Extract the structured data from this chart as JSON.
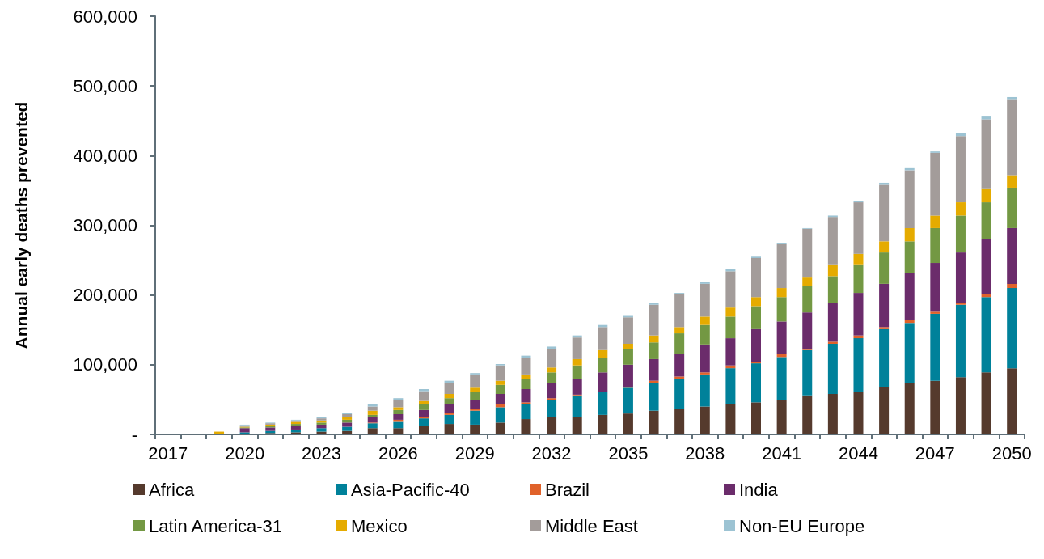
{
  "chart_data": {
    "type": "bar",
    "stacked": true,
    "ylabel": "Annual early deaths prevented",
    "categories": [
      "2017",
      null,
      null,
      "2020",
      null,
      null,
      "2023",
      null,
      null,
      "2026",
      null,
      null,
      "2029",
      null,
      null,
      "2032",
      null,
      null,
      "2035",
      null,
      null,
      "2038",
      null,
      null,
      "2041",
      null,
      null,
      "2044",
      null,
      null,
      "2047",
      null,
      null,
      "2050"
    ],
    "ylim": [
      0,
      600000
    ],
    "yticks": [
      {
        "value": 0,
        "label": "-"
      },
      {
        "value": 100000,
        "label": "100,000"
      },
      {
        "value": 200000,
        "label": "200,000"
      },
      {
        "value": 300000,
        "label": "300,000"
      },
      {
        "value": 400000,
        "label": "400,000"
      },
      {
        "value": 500000,
        "label": "500,000"
      },
      {
        "value": 600000,
        "label": "600,000"
      }
    ],
    "grid": false,
    "legend": "bottom",
    "series": [
      {
        "name": "Africa",
        "color": "#553a2d",
        "values": [
          0,
          0,
          1000,
          1000,
          2000,
          3000,
          4000,
          5000,
          9000,
          9000,
          12000,
          15000,
          14000,
          17000,
          22000,
          25000,
          25000,
          28000,
          30000,
          34000,
          36000,
          40000,
          43000,
          46000,
          49000,
          56000,
          58000,
          61000,
          68000,
          74000,
          77000,
          82000,
          89000,
          95000
        ]
      },
      {
        "name": "Asia-Pacific-40",
        "color": "#00819a",
        "values": [
          0,
          0,
          0,
          2000,
          3000,
          4000,
          5000,
          6000,
          7000,
          9000,
          11000,
          13000,
          20000,
          22000,
          22000,
          24000,
          31000,
          33000,
          37000,
          40000,
          44000,
          46000,
          52000,
          56000,
          62000,
          65000,
          72000,
          77000,
          83000,
          86000,
          96000,
          104000,
          108000,
          115000
        ]
      },
      {
        "name": "Brazil",
        "color": "#e0622a",
        "values": [
          0,
          0,
          0,
          0,
          0,
          0,
          null,
          null,
          1000,
          3000,
          2000,
          3000,
          2000,
          4000,
          2000,
          3000,
          1000,
          null,
          1000,
          3000,
          3000,
          3000,
          4000,
          2000,
          4000,
          2000,
          3000,
          4000,
          3000,
          4000,
          3000,
          2000,
          4000,
          6000
        ]
      },
      {
        "name": "India",
        "color": "#6b2c6b",
        "values": [
          1000,
          0,
          0,
          6000,
          5000,
          5000,
          5000,
          6000,
          8000,
          8000,
          10000,
          12000,
          13000,
          15000,
          19000,
          22000,
          23000,
          28000,
          32000,
          31000,
          33000,
          40000,
          39000,
          47000,
          47000,
          52000,
          55000,
          61000,
          62000,
          67000,
          70000,
          73000,
          79000,
          80000
        ]
      },
      {
        "name": "Latin America-31",
        "color": "#739843",
        "values": [
          0,
          0,
          0,
          1000,
          2000,
          3000,
          3000,
          4000,
          3000,
          6000,
          8000,
          9000,
          12000,
          13000,
          15000,
          15000,
          19000,
          21000,
          22000,
          24000,
          29000,
          28000,
          31000,
          33000,
          35000,
          38000,
          39000,
          41000,
          45000,
          46000,
          50000,
          53000,
          53000,
          58000
        ]
      },
      {
        "name": "Mexico",
        "color": "#e5ab00",
        "values": [
          0,
          1000,
          3000,
          1000,
          2000,
          3000,
          3000,
          4000,
          6000,
          4000,
          5000,
          6000,
          6000,
          6000,
          6000,
          7000,
          9000,
          11000,
          8000,
          10000,
          9000,
          12000,
          13000,
          13000,
          13000,
          12000,
          17000,
          15000,
          16000,
          19000,
          18000,
          19000,
          19000,
          18000
        ]
      },
      {
        "name": "Middle East",
        "color": "#a39c9a",
        "values": [
          0,
          0,
          0,
          2000,
          2000,
          2000,
          3000,
          4000,
          6000,
          10000,
          14000,
          16000,
          19000,
          22000,
          24000,
          27000,
          31000,
          33000,
          38000,
          44000,
          47000,
          47000,
          52000,
          56000,
          63000,
          70000,
          68000,
          74000,
          81000,
          83000,
          90000,
          95000,
          100000,
          109000
        ]
      },
      {
        "name": "Non-EU Europe",
        "color": "#9cc3d3",
        "values": [
          0,
          0,
          0,
          1000,
          1000,
          1000,
          2000,
          2000,
          3000,
          3000,
          3000,
          3000,
          2000,
          2000,
          3000,
          3000,
          3000,
          3000,
          2000,
          2000,
          2000,
          3000,
          3000,
          2000,
          2000,
          1000,
          2000,
          2000,
          3000,
          3000,
          2000,
          4000,
          4000,
          3000
        ]
      }
    ]
  }
}
